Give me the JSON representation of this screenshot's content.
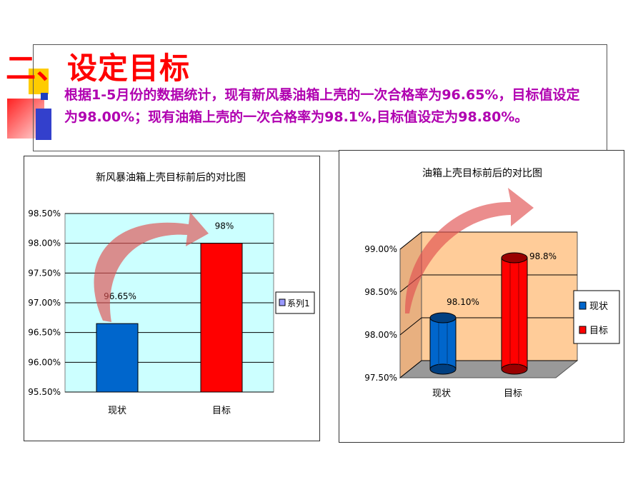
{
  "slide": {
    "title": "二、设定目标",
    "body_text": "根据1-5月份的数据统计，现有新风暴油箱上壳的一次合格率为96.65%，目标值设定为98.00%；现有油箱上壳的一次合格率为98.1%,目标值设定为98.80%。"
  },
  "colors": {
    "title": "#ff0000",
    "body_text": "#b000b0",
    "bullet": "#1f3fbf"
  },
  "chart_data": [
    {
      "type": "bar",
      "title": "新风暴油箱上壳目标前后的对比图",
      "categories": [
        "现状",
        "目标"
      ],
      "series": [
        {
          "name": "系列1",
          "values": [
            96.65,
            98.0
          ],
          "colors": [
            "#0066cc",
            "#ff0000"
          ]
        }
      ],
      "data_labels": [
        "96.65%",
        "98%"
      ],
      "ylim": [
        95.5,
        98.5
      ],
      "yticks": [
        "95.50%",
        "96.00%",
        "96.50%",
        "97.00%",
        "97.50%",
        "98.00%",
        "98.50%"
      ],
      "grid": true,
      "legend": "right",
      "plot_bg": "#ccffff"
    },
    {
      "type": "bar",
      "title": "油箱上壳目标前后的对比图",
      "categories": [
        "现状",
        "目标"
      ],
      "values": [
        98.1,
        98.8
      ],
      "data_labels": [
        "98.10%",
        "98.8%"
      ],
      "legend_entries": [
        {
          "label": "现状",
          "color": "#0066cc"
        },
        {
          "label": "目标",
          "color": "#ff0000"
        }
      ],
      "ylim": [
        97.5,
        99.0
      ],
      "yticks": [
        "97.50%",
        "98.00%",
        "98.50%",
        "99.00%"
      ],
      "grid": true,
      "legend": "right",
      "plot_bg": "#ffcc99"
    }
  ]
}
